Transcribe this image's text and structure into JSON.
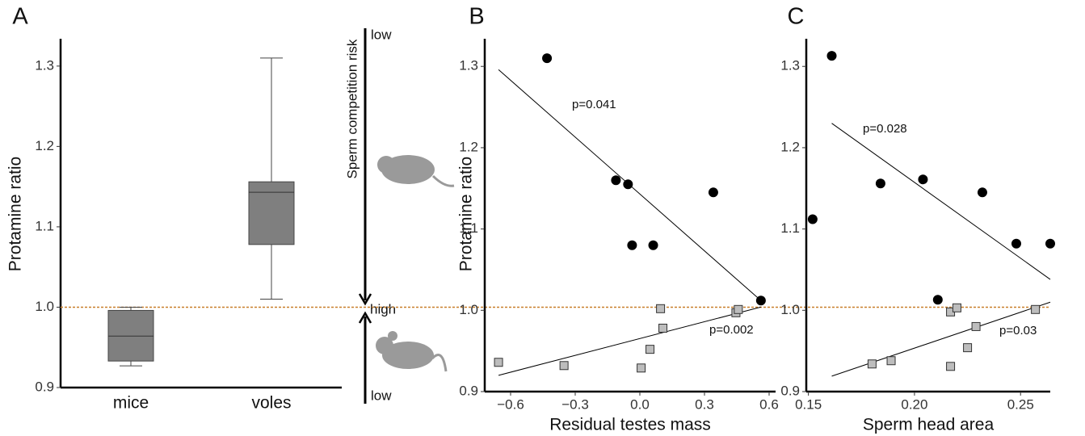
{
  "chart_data": [
    {
      "type": "box",
      "panel": "A",
      "ylabel": "Protamine ratio",
      "categories": [
        "mice",
        "voles"
      ],
      "min": [
        0.927,
        1.01
      ],
      "q1": [
        0.933,
        1.078
      ],
      "median": [
        0.964,
        1.143
      ],
      "q3": [
        0.996,
        1.156
      ],
      "max": [
        1.0,
        1.31
      ],
      "color": "#7f7f7f",
      "ylim": [
        0.9,
        1.334
      ],
      "yticks": [
        0.9,
        {
          "value": 1,
          "label": "1.0"
        },
        1.1,
        1.2,
        1.3
      ],
      "hline": 1,
      "hline_color": "#c87f2a"
    },
    {
      "type": "scatter",
      "panel": "B",
      "ylabel": "Protamine ratio",
      "xlabel": "Residual testes mass",
      "series": [
        {
          "color": "#000000",
          "marker": "circle",
          "x": [
            -0.431,
            -0.111,
            -0.055,
            -0.036,
            0.062,
            0.341,
            0.562
          ],
          "values": [
            1.31,
            1.16,
            1.155,
            1.08,
            1.08,
            1.145,
            1.012
          ]
        },
        {
          "color": "#bdbdbd",
          "marker": "square",
          "x": [
            -0.656,
            -0.352,
            0.006,
            0.047,
            0.107,
            0.096,
            0.446,
            0.457
          ],
          "values": [
            0.936,
            0.932,
            0.929,
            0.952,
            0.978,
            1.002,
            0.997,
            1.001
          ]
        }
      ],
      "fits": [
        {
          "x": [
            -0.656,
            0.562
          ],
          "values": [
            1.296,
            1.012
          ]
        },
        {
          "x": [
            -0.656,
            0.562
          ],
          "values": [
            0.92,
            1.004
          ]
        }
      ],
      "annotations": [
        "p=0.041",
        "p=0.002"
      ],
      "xlim": [
        -0.72,
        0.63
      ],
      "xticks": [
        {
          "value": -0.6,
          "label": "−0.6"
        },
        {
          "value": -0.3,
          "label": "−0.3"
        },
        {
          "value": 0,
          "label": "0.0"
        },
        0.3,
        0.6
      ],
      "ylim": [
        0.9,
        1.334
      ],
      "yticks": [
        0.9,
        {
          "value": 1,
          "label": "1.0"
        },
        1.1,
        1.2,
        1.3
      ]
    },
    {
      "type": "scatter",
      "panel": "C",
      "xlabel": "Sperm head area",
      "series": [
        {
          "color": "#000000",
          "marker": "circle",
          "x": [
            0.161,
            0.152,
            0.184,
            0.204,
            0.232,
            0.248,
            0.264,
            0.211
          ],
          "values": [
            1.313,
            1.112,
            1.156,
            1.161,
            1.145,
            1.082,
            1.082,
            1.013
          ]
        },
        {
          "color": "#bdbdbd",
          "marker": "square",
          "x": [
            0.18,
            0.189,
            0.217,
            0.217,
            0.22,
            0.225,
            0.229,
            0.257
          ],
          "values": [
            0.934,
            0.938,
            0.931,
            0.998,
            1.003,
            0.954,
            0.98,
            1.001
          ]
        }
      ],
      "fits": [
        {
          "x": [
            0.161,
            0.264
          ],
          "values": [
            1.23,
            1.038
          ]
        },
        {
          "x": [
            0.161,
            0.264
          ],
          "values": [
            0.919,
            1.01
          ]
        }
      ],
      "annotations": [
        "p=0.028",
        "p=0.03"
      ],
      "xlim": [
        0.149,
        0.264
      ],
      "xticks": [
        0.15,
        {
          "value": 0.2,
          "label": "0.20"
        },
        0.25
      ],
      "ylim": [
        0.9,
        1.334
      ],
      "yticks": [
        0.9,
        {
          "value": 1,
          "label": "1.0"
        },
        1.1,
        1.2,
        1.3
      ]
    }
  ],
  "diagram": {
    "label": "Sperm competition risk",
    "top": "low",
    "middle": "high",
    "bottom": "low"
  }
}
